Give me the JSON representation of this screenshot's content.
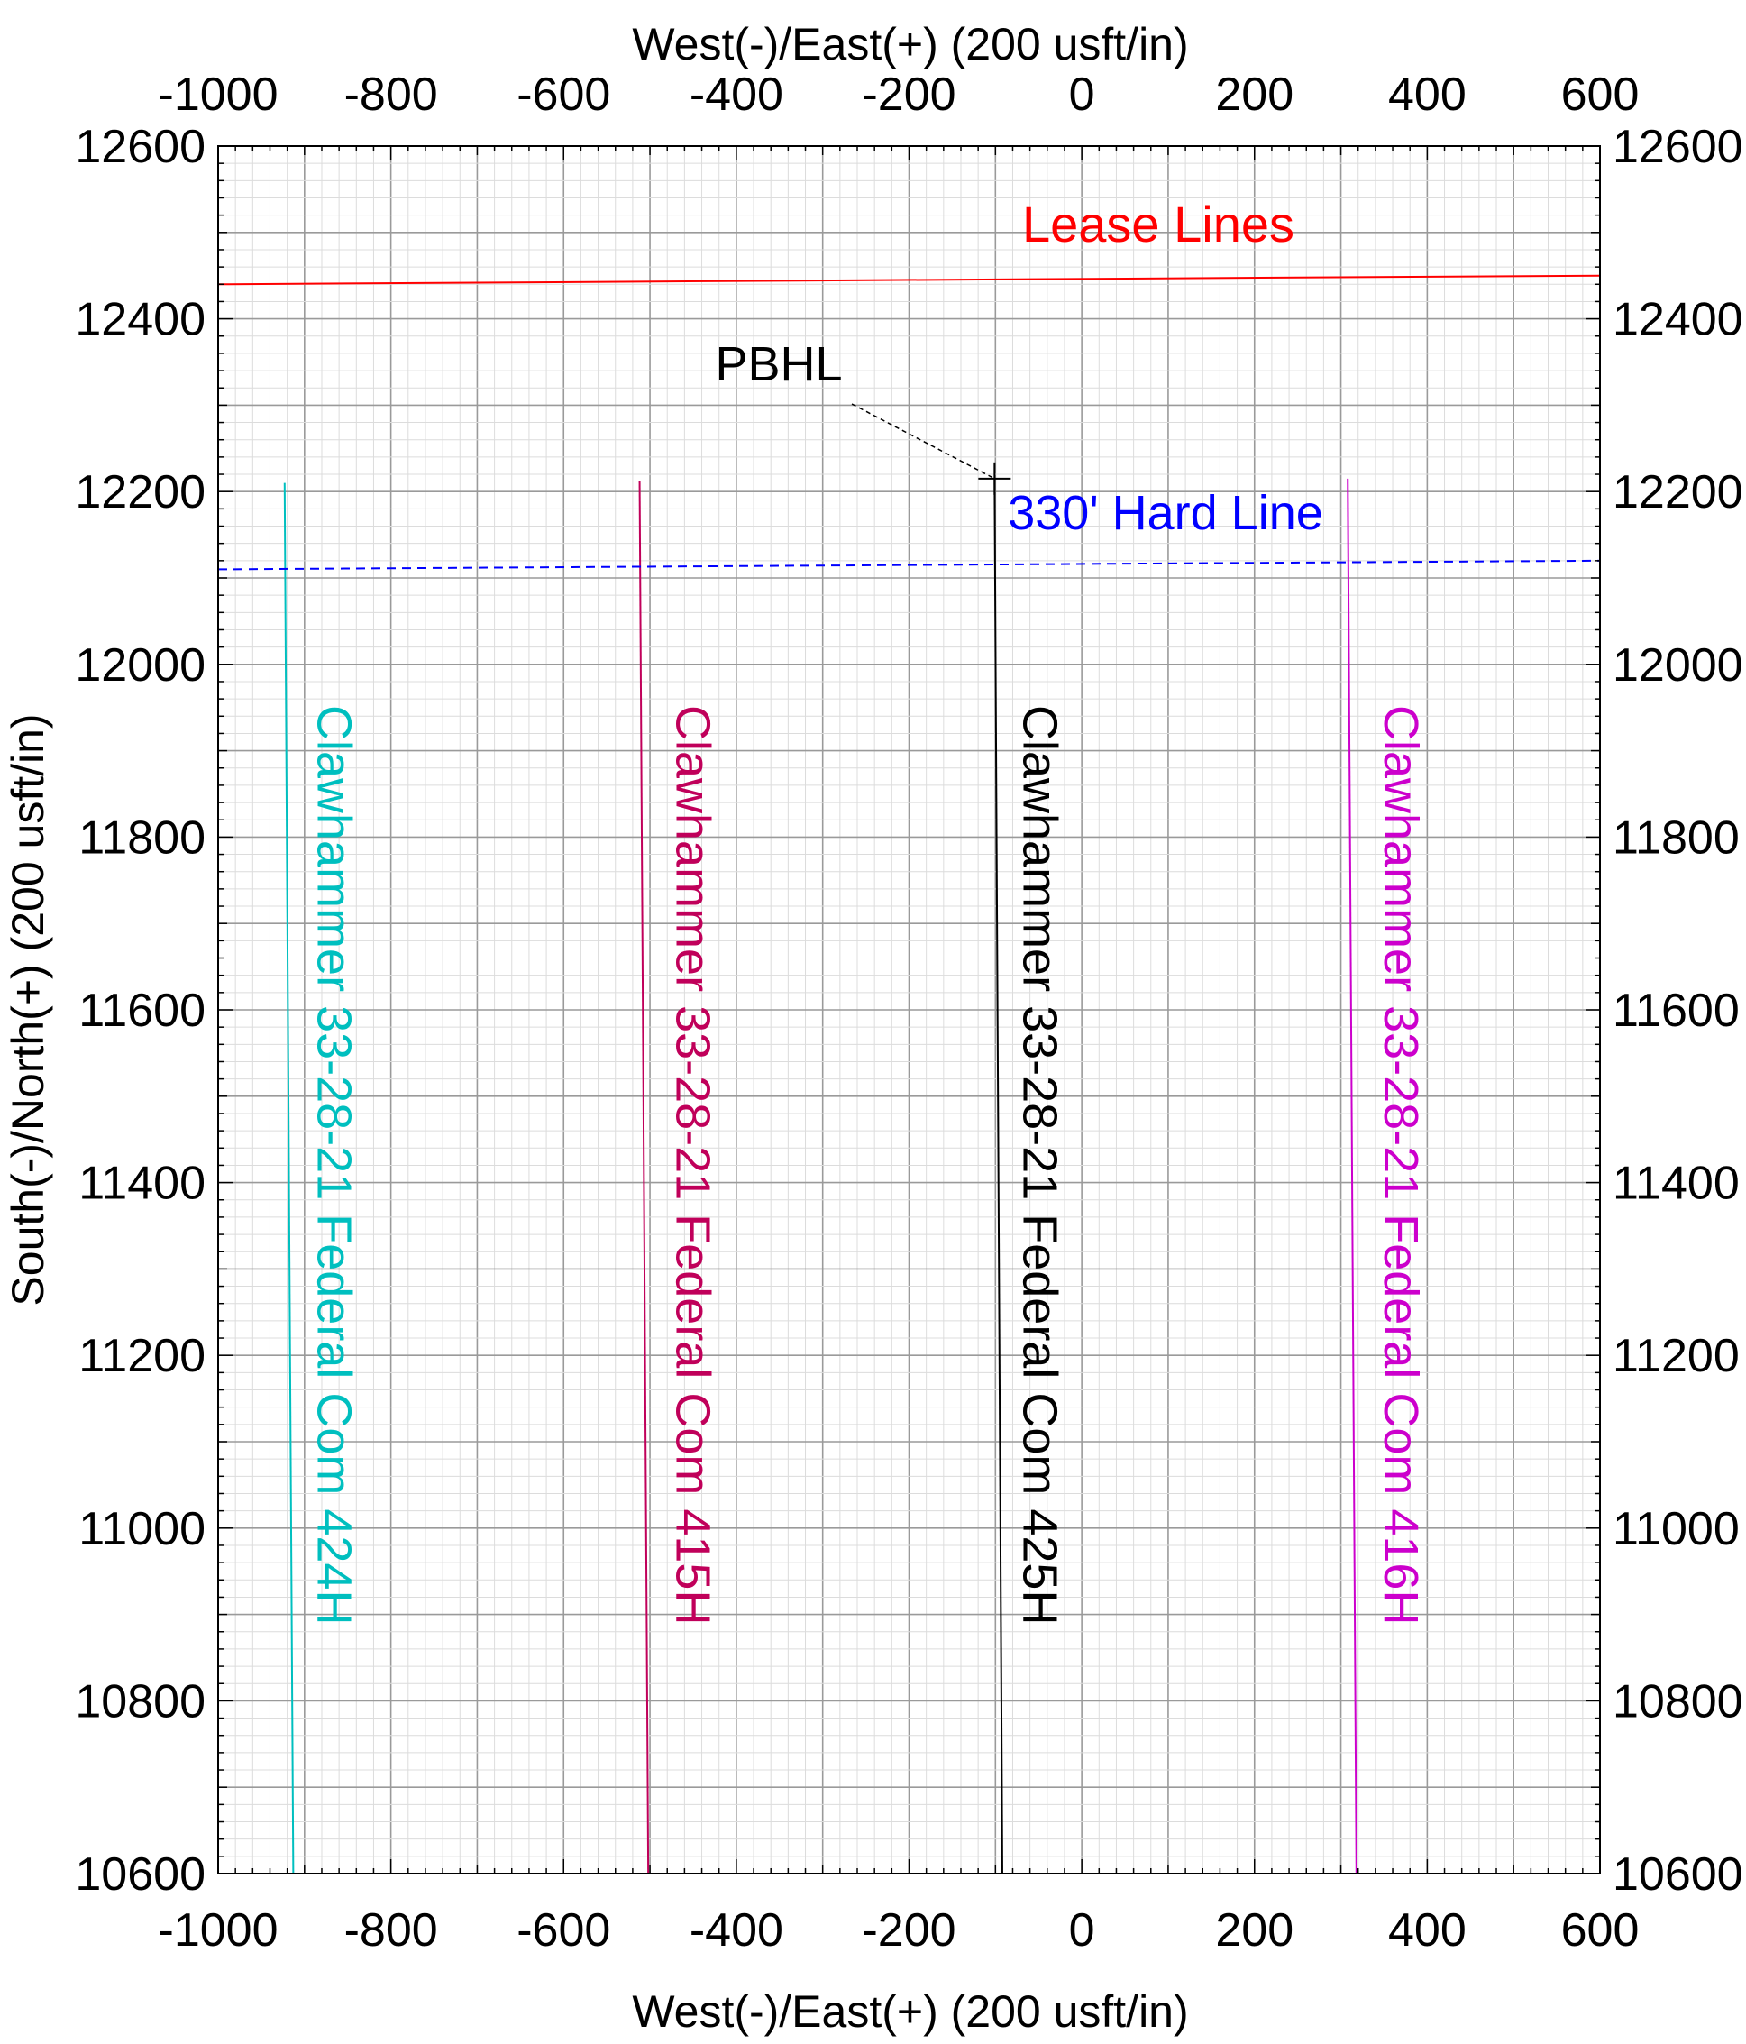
{
  "chart_data": {
    "type": "line",
    "title": "",
    "xlabel": "West(-)/East(+) (200 usft/in)",
    "ylabel": "South(-)/North(+) (200 usft/in)",
    "xlim": [
      -1000,
      600
    ],
    "ylim": [
      10600,
      12600
    ],
    "x_ticks": [
      -1000,
      -800,
      -600,
      -400,
      -200,
      0,
      200,
      400,
      600
    ],
    "y_ticks": [
      10600,
      10800,
      11000,
      11200,
      11400,
      11600,
      11800,
      12000,
      12200,
      12400,
      12600
    ],
    "grid": true,
    "series": [
      {
        "name": "Clawhammer 33-28-21 Federal Com 424H",
        "color": "#00bfbf",
        "style": "solid",
        "points": [
          [
            -913,
            10600
          ],
          [
            -923,
            12210
          ]
        ]
      },
      {
        "name": "Clawhammer 33-28-21 Federal Com 415H",
        "color": "#c0005a",
        "style": "solid",
        "points": [
          [
            -502,
            10600
          ],
          [
            -512,
            12212
          ]
        ]
      },
      {
        "name": "Clawhammer 33-28-21 Federal Com 425H",
        "color": "#000000",
        "style": "solid",
        "points": [
          [
            -92,
            10600
          ],
          [
            -101,
            12215
          ]
        ]
      },
      {
        "name": "Clawhammer 33-28-21 Federal Com 416H",
        "color": "#cc00cc",
        "style": "solid",
        "points": [
          [
            318,
            10600
          ],
          [
            308,
            12215
          ]
        ]
      },
      {
        "name": "Lease Lines",
        "color": "#ff0000",
        "style": "solid",
        "points": [
          [
            -1000,
            12440
          ],
          [
            600,
            12450
          ]
        ]
      },
      {
        "name": "330' Hard Line",
        "color": "#0000ff",
        "style": "dashed",
        "points": [
          [
            -1000,
            12110
          ],
          [
            600,
            12120
          ]
        ]
      }
    ],
    "annotations": [
      {
        "text": "PBHL",
        "target": [
          -101,
          12215
        ],
        "color": "#000000"
      }
    ]
  }
}
